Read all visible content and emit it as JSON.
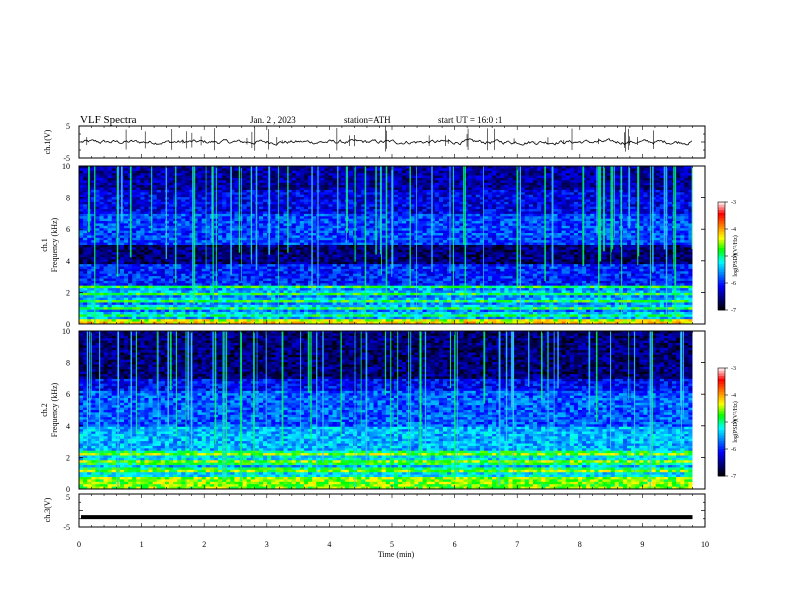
{
  "header": {
    "title": "VLF Spectra",
    "date": "Jan. 2 , 2023",
    "station": "station=ATH",
    "start": "start UT = 16:0 :1"
  },
  "chart_data": [
    {
      "type": "line",
      "name": "ch1-waveform",
      "ylabel": "ch.1(V)",
      "ylim": [
        -5,
        5
      ],
      "yticks": [
        "5",
        "-5"
      ],
      "baseline": 0,
      "noise": 0.6
    },
    {
      "type": "heatmap",
      "name": "ch1-spectrogram",
      "ylabel_line1": "ch.1",
      "ylabel_line2": "Frequency (kHz)",
      "ylim": [
        0,
        10
      ],
      "yticks": [
        "0",
        "2",
        "4",
        "6",
        "8",
        "10"
      ],
      "colorbar": {
        "label": "log(PSD)(V²/Hz)",
        "range": [
          -7,
          -3
        ],
        "ticks": [
          "-3",
          "-4",
          "-5",
          "-6",
          "-7"
        ]
      }
    },
    {
      "type": "heatmap",
      "name": "ch2-spectrogram",
      "ylabel_line1": "ch.2",
      "ylabel_line2": "Frequency (kHz)",
      "ylim": [
        0,
        10
      ],
      "yticks": [
        "0",
        "2",
        "4",
        "6",
        "8",
        "10"
      ],
      "colorbar": {
        "label": "log(PSD)(V²/Hz)",
        "range": [
          -7,
          -3
        ],
        "ticks": [
          "-3",
          "-4",
          "-5",
          "-6",
          "-7"
        ]
      }
    },
    {
      "type": "line",
      "name": "ch3-waveform",
      "ylabel": "ch.3(V)",
      "ylim": [
        -5,
        5
      ],
      "yticks": [
        "5",
        "-5"
      ],
      "baseline": -2
    }
  ],
  "xaxis": {
    "label": "Time (min)",
    "range": [
      0,
      10
    ],
    "data_end": 9.8,
    "ticks": [
      "0",
      "1",
      "2",
      "3",
      "4",
      "5",
      "6",
      "7",
      "8",
      "9",
      "10"
    ]
  },
  "colors": {
    "line": "#000000",
    "colormap": [
      "#000000",
      "#00007f",
      "#0000ff",
      "#0080ff",
      "#00ffff",
      "#00ff00",
      "#ffff00",
      "#ff7f00",
      "#ff0000",
      "#ffffff"
    ]
  }
}
